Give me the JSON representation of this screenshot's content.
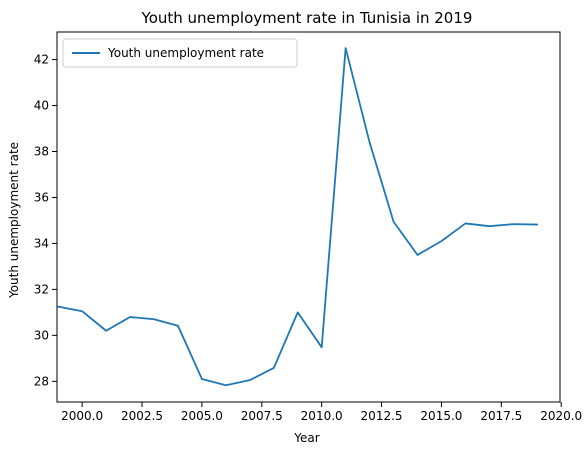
{
  "chart_data": {
    "type": "line",
    "title": "Youth unemployment rate in Tunisia in 2019",
    "xlabel": "Year",
    "ylabel": "Youth unemployment rate",
    "xlim": [
      1998.95,
      2019.95
    ],
    "ylim": [
      27.1,
      43.2
    ],
    "xticks": [
      2000.0,
      2002.5,
      2005.0,
      2007.5,
      2010.0,
      2012.5,
      2015.0,
      2017.5,
      2020.0
    ],
    "xtick_labels": [
      "2000.0",
      "2002.5",
      "2005.0",
      "2007.5",
      "2010.0",
      "2012.5",
      "2015.0",
      "2017.5",
      "2020.0"
    ],
    "yticks": [
      28,
      30,
      32,
      34,
      36,
      38,
      40,
      42
    ],
    "ytick_labels": [
      "28",
      "30",
      "32",
      "34",
      "36",
      "38",
      "40",
      "42"
    ],
    "legend_position": "upper-left",
    "grid": false,
    "series": [
      {
        "name": "Youth unemployment rate",
        "color": "#1f77b4",
        "x": [
          1999,
          2000,
          2001,
          2002,
          2003,
          2004,
          2005,
          2006,
          2007,
          2008,
          2009,
          2010,
          2011,
          2012,
          2013,
          2014,
          2015,
          2016,
          2017,
          2018,
          2019
        ],
        "values": [
          31.25,
          31.05,
          30.2,
          30.8,
          30.7,
          30.42,
          28.1,
          27.83,
          28.05,
          28.58,
          31.0,
          29.48,
          42.5,
          38.4,
          34.95,
          33.5,
          34.1,
          34.87,
          34.75,
          34.84,
          34.82
        ]
      }
    ]
  }
}
